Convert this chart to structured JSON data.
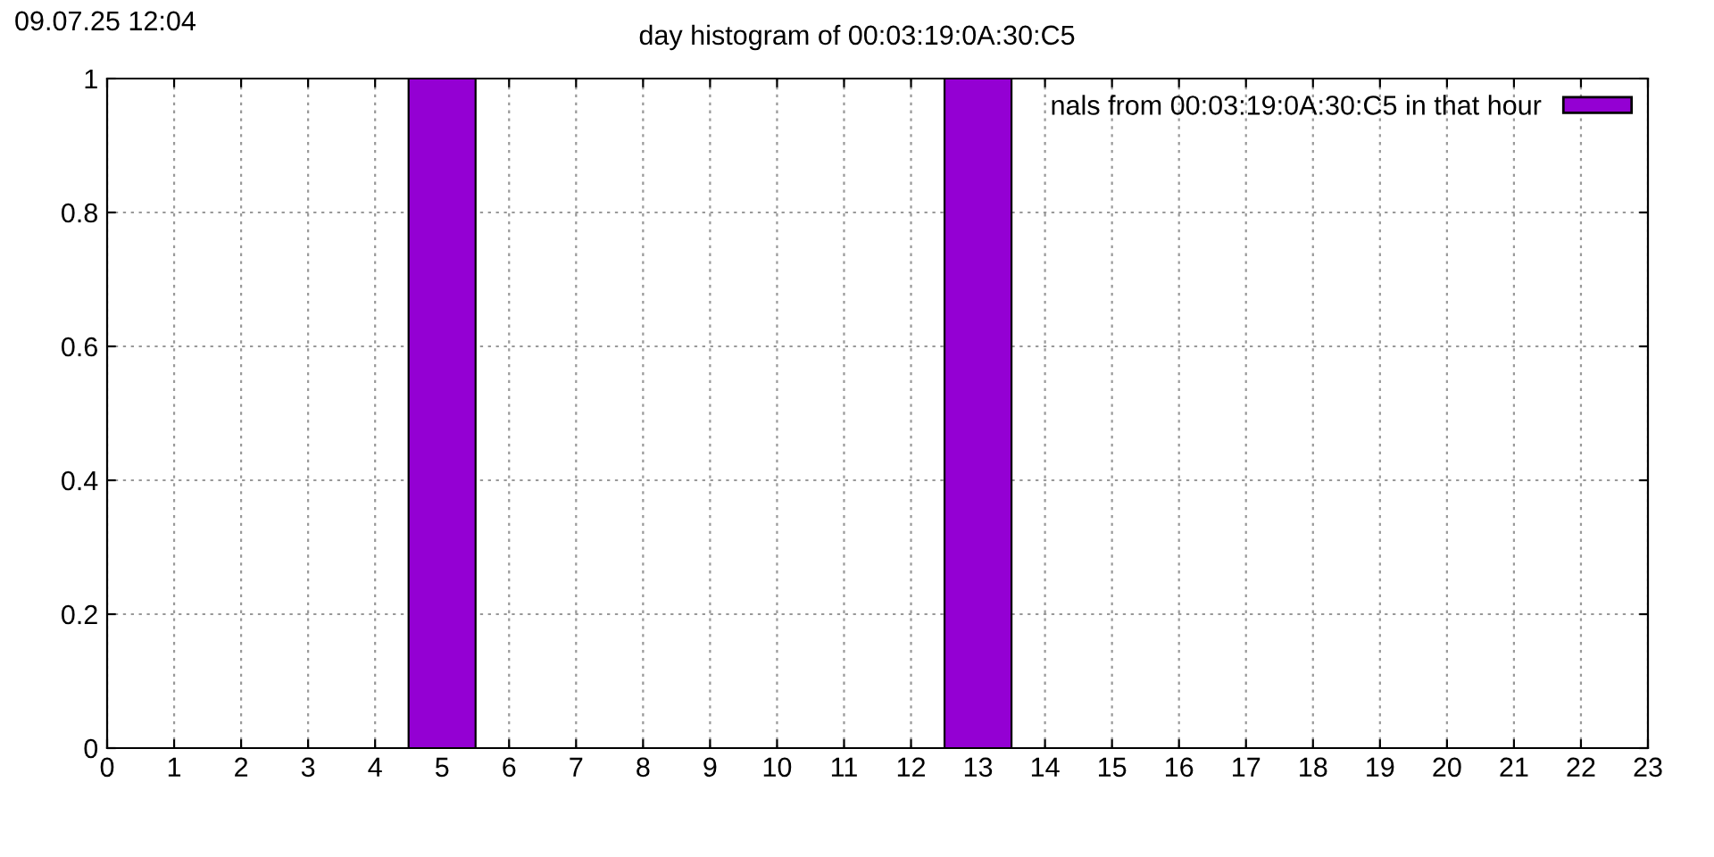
{
  "chart_data": {
    "type": "bar",
    "title": "day histogram of 00:03:19:0A:30:C5",
    "annotations": [
      "09.07.25 12:04"
    ],
    "x": [
      0,
      1,
      2,
      3,
      4,
      5,
      6,
      7,
      8,
      9,
      10,
      11,
      12,
      13,
      14,
      15,
      16,
      17,
      18,
      19,
      20,
      21,
      22,
      23
    ],
    "series": [
      {
        "name": "nals from 00:03:19:0A:30:C5 in that hour",
        "color": "#9400d3",
        "values": [
          0,
          0,
          0,
          0,
          0,
          1,
          0,
          0,
          0,
          0,
          0,
          0,
          0,
          1,
          0,
          0,
          0,
          0,
          0,
          0,
          0,
          0,
          0,
          0
        ]
      }
    ],
    "xlim": [
      0,
      23
    ],
    "xticks": [
      0,
      1,
      2,
      3,
      4,
      5,
      6,
      7,
      8,
      9,
      10,
      11,
      12,
      13,
      14,
      15,
      16,
      17,
      18,
      19,
      20,
      21,
      22,
      23
    ],
    "ylim": [
      0,
      1
    ],
    "yticks": [
      0,
      0.2,
      0.4,
      0.6,
      0.8,
      1
    ],
    "grid": true,
    "legend": "top right"
  }
}
